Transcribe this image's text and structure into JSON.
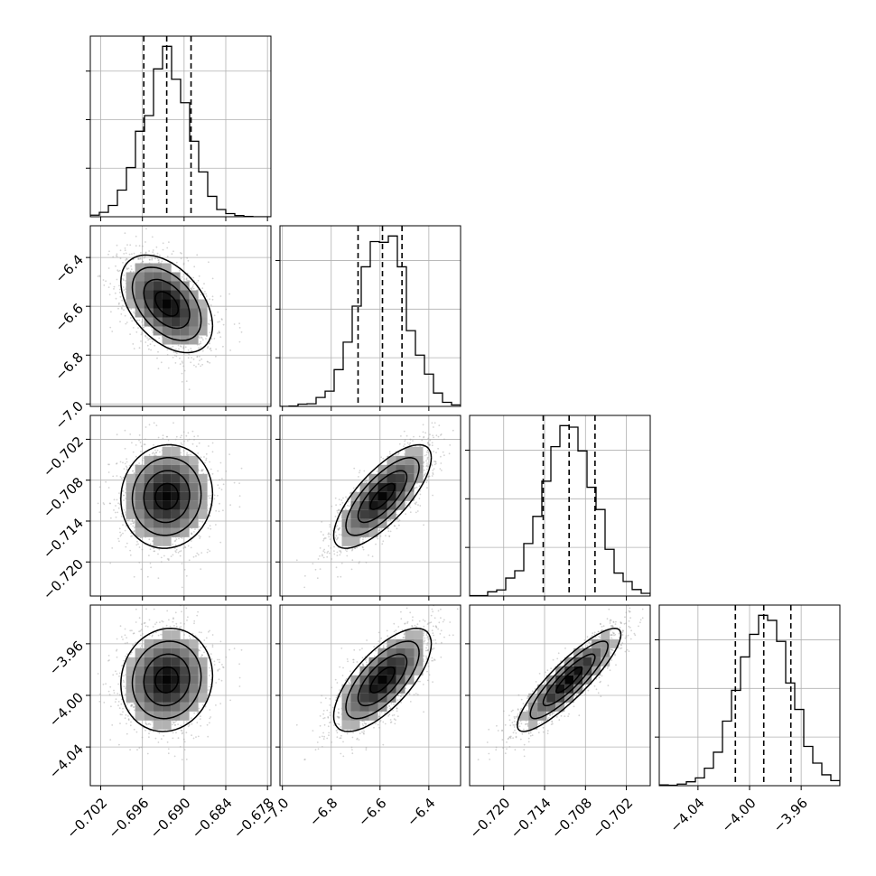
{
  "chart_data": {
    "type": "corner",
    "grid": true,
    "colors": {
      "axes": "#000000",
      "grid": "#b0b0b0",
      "scatter": "#a0a0a0",
      "hist": "#000000"
    },
    "parameters": [
      {
        "mean": -0.6925,
        "sd": 0.0033,
        "range": [
          -0.7035,
          -0.6775
        ],
        "quantiles": [
          -0.6958,
          -0.6925,
          -0.689
        ],
        "ticks": [
          -0.702,
          -0.696,
          -0.69,
          -0.684,
          -0.678
        ],
        "tick_labels": [
          "−0.702",
          "−0.696",
          "−0.690",
          "−0.684",
          "−0.678"
        ]
      },
      {
        "mean": -6.59,
        "sd": 0.1,
        "range": [
          -7.01,
          -6.27
        ],
        "quantiles": [
          -6.69,
          -6.59,
          -6.51
        ],
        "ticks": [
          -7.0,
          -6.8,
          -6.6,
          -6.4
        ],
        "tick_labels": [
          "−7.0",
          "−6.8",
          "−6.6",
          "−6.4"
        ]
      },
      {
        "mean": -0.7104,
        "sd": 0.0038,
        "range": [
          -0.725,
          -0.6985
        ],
        "quantiles": [
          -0.7142,
          -0.7104,
          -0.7066
        ],
        "ticks": [
          -0.72,
          -0.714,
          -0.708,
          -0.702
        ],
        "tick_labels": [
          "−0.720",
          "−0.714",
          "−0.708",
          "−0.702"
        ]
      },
      {
        "mean": -3.988,
        "sd": 0.02,
        "range": [
          -4.07,
          -3.93
        ],
        "quantiles": [
          -4.011,
          -3.989,
          -3.968
        ],
        "ticks": [
          -4.04,
          -4.0,
          -3.96
        ],
        "tick_labels": [
          "−4.04",
          "−4.00",
          "−3.96"
        ]
      }
    ],
    "correlations": [
      [
        1.0,
        -0.45,
        0.05,
        0.08
      ],
      [
        -0.45,
        1.0,
        0.75,
        0.7
      ],
      [
        0.05,
        0.75,
        1.0,
        0.88
      ],
      [
        0.08,
        0.7,
        0.88,
        1.0
      ]
    ]
  }
}
